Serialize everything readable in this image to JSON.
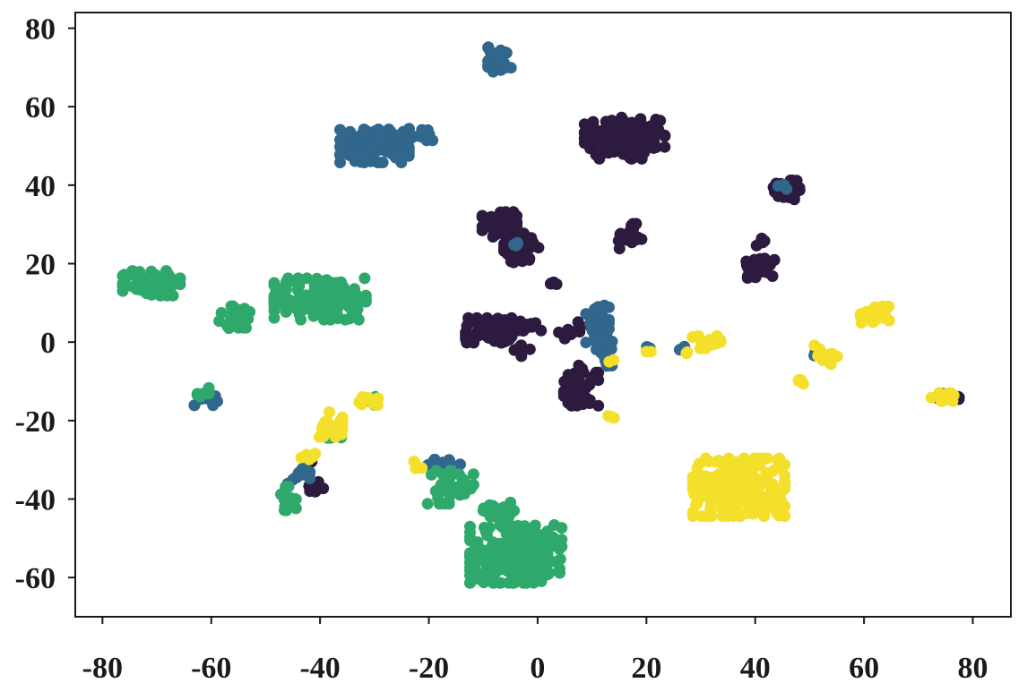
{
  "chart_data": {
    "type": "scatter",
    "title": "",
    "xlabel": "",
    "ylabel": "",
    "xlim": [
      -85,
      87
    ],
    "ylim": [
      -70,
      84
    ],
    "xticks": [
      -80,
      -60,
      -40,
      -20,
      0,
      20,
      40,
      60,
      80
    ],
    "yticks": [
      -60,
      -40,
      -20,
      0,
      20,
      40,
      60,
      80
    ],
    "xtick_labels": [
      "-80",
      "-60",
      "-40",
      "-20",
      "0",
      "20",
      "40",
      "60",
      "80"
    ],
    "ytick_labels": [
      "-60",
      "-40",
      "-20",
      "0",
      "20",
      "40",
      "60",
      "80"
    ],
    "grid": false,
    "legend": "none",
    "series": [
      {
        "color": "#2d1b3f",
        "clusters": [
          {
            "cx": 16,
            "cy": 52,
            "rx": 7,
            "ry": 5,
            "n": 140
          },
          {
            "cx": 46,
            "cy": 39,
            "rx": 2.5,
            "ry": 2.5,
            "n": 30
          },
          {
            "cx": 41,
            "cy": 19,
            "rx": 2.5,
            "ry": 2.5,
            "n": 35
          },
          {
            "cx": 41,
            "cy": 25,
            "rx": 0.8,
            "ry": 1.5,
            "n": 5
          },
          {
            "cx": 17,
            "cy": 27,
            "rx": 2,
            "ry": 3,
            "n": 20
          },
          {
            "cx": -7,
            "cy": 30,
            "rx": 3,
            "ry": 3,
            "n": 45
          },
          {
            "cx": -3,
            "cy": 24,
            "rx": 3,
            "ry": 3.5,
            "n": 45
          },
          {
            "cx": 3,
            "cy": 15,
            "rx": 1,
            "ry": 1,
            "n": 5
          },
          {
            "cx": -9,
            "cy": 3,
            "rx": 4,
            "ry": 3,
            "n": 75
          },
          {
            "cx": -2,
            "cy": 4,
            "rx": 2.5,
            "ry": 1.5,
            "n": 12
          },
          {
            "cx": 6,
            "cy": 3,
            "rx": 2,
            "ry": 2,
            "n": 10
          },
          {
            "cx": 8,
            "cy": -12,
            "rx": 3,
            "ry": 4,
            "n": 45
          },
          {
            "cx": 8,
            "cy": -7,
            "rx": 1,
            "ry": 1,
            "n": 5
          },
          {
            "cx": -41,
            "cy": -37,
            "rx": 1.5,
            "ry": 2,
            "n": 14
          },
          {
            "cx": -42,
            "cy": -31,
            "rx": 1,
            "ry": 1.5,
            "n": 8
          },
          {
            "cx": 76,
            "cy": -14,
            "rx": 2.5,
            "ry": 1,
            "n": 10
          },
          {
            "cx": -3,
            "cy": -2,
            "rx": 1.5,
            "ry": 1.5,
            "n": 8
          }
        ]
      },
      {
        "color": "#31668d",
        "clusters": [
          {
            "cx": -7,
            "cy": 72,
            "rx": 2,
            "ry": 3,
            "n": 30
          },
          {
            "cx": -30,
            "cy": 50,
            "rx": 6,
            "ry": 4,
            "n": 110
          },
          {
            "cx": -21,
            "cy": 53,
            "rx": 2.5,
            "ry": 1.5,
            "n": 15
          },
          {
            "cx": 11,
            "cy": 3,
            "rx": 2,
            "ry": 6,
            "n": 55
          },
          {
            "cx": 13,
            "cy": -3,
            "rx": 1.5,
            "ry": 3,
            "n": 15
          },
          {
            "cx": -4,
            "cy": 25,
            "rx": 1,
            "ry": 1,
            "n": 4
          },
          {
            "cx": -61,
            "cy": -14,
            "rx": 2,
            "ry": 2,
            "n": 20
          },
          {
            "cx": -17,
            "cy": -31,
            "rx": 3,
            "ry": 1,
            "n": 18
          },
          {
            "cx": -44,
            "cy": -34,
            "rx": 2,
            "ry": 2,
            "n": 12
          },
          {
            "cx": 20,
            "cy": -2,
            "rx": 1,
            "ry": 1,
            "n": 5
          },
          {
            "cx": 27,
            "cy": -2,
            "rx": 1,
            "ry": 1,
            "n": 4
          },
          {
            "cx": 52,
            "cy": -4,
            "rx": 2,
            "ry": 1.5,
            "n": 5
          },
          {
            "cx": 45,
            "cy": 40,
            "rx": 1,
            "ry": 1,
            "n": 4
          }
        ]
      },
      {
        "color": "#2fa86c",
        "clusters": [
          {
            "cx": -71,
            "cy": 15,
            "rx": 5,
            "ry": 3,
            "n": 80
          },
          {
            "cx": -40,
            "cy": 11,
            "rx": 8,
            "ry": 5,
            "n": 150
          },
          {
            "cx": -55,
            "cy": 6,
            "rx": 3.5,
            "ry": 3,
            "n": 25
          },
          {
            "cx": -4,
            "cy": -54,
            "rx": 8,
            "ry": 7,
            "n": 210
          },
          {
            "cx": -7,
            "cy": -43,
            "rx": 3,
            "ry": 2,
            "n": 25
          },
          {
            "cx": -16,
            "cy": -37,
            "rx": 4,
            "ry": 4,
            "n": 35
          },
          {
            "cx": -46,
            "cy": -40,
            "rx": 1.5,
            "ry": 3,
            "n": 18
          },
          {
            "cx": -37,
            "cy": -23,
            "rx": 1.5,
            "ry": 2,
            "n": 8
          },
          {
            "cx": -62,
            "cy": -13,
            "rx": 1.5,
            "ry": 1.5,
            "n": 6
          },
          {
            "cx": -30,
            "cy": -15,
            "rx": 1.5,
            "ry": 1,
            "n": 5
          }
        ]
      },
      {
        "color": "#f4df2a",
        "clusters": [
          {
            "cx": 37,
            "cy": -37,
            "rx": 8,
            "ry": 7,
            "n": 230
          },
          {
            "cx": 62,
            "cy": 7,
            "rx": 2.5,
            "ry": 2,
            "n": 30
          },
          {
            "cx": 53,
            "cy": -3,
            "rx": 2.5,
            "ry": 2.5,
            "n": 12
          },
          {
            "cx": 49,
            "cy": -10,
            "rx": 1,
            "ry": 1,
            "n": 4
          },
          {
            "cx": 31,
            "cy": 0,
            "rx": 2.5,
            "ry": 1.5,
            "n": 14
          },
          {
            "cx": -31,
            "cy": -15,
            "rx": 2,
            "ry": 1,
            "n": 14
          },
          {
            "cx": -38,
            "cy": -21,
            "rx": 2,
            "ry": 3,
            "n": 18
          },
          {
            "cx": -42,
            "cy": -29,
            "rx": 1.5,
            "ry": 1,
            "n": 8
          },
          {
            "cx": 75,
            "cy": -14,
            "rx": 2.5,
            "ry": 1,
            "n": 14
          },
          {
            "cx": 13,
            "cy": -19,
            "rx": 1,
            "ry": 1,
            "n": 4
          },
          {
            "cx": -22,
            "cy": -32,
            "rx": 1,
            "ry": 1.5,
            "n": 5
          },
          {
            "cx": 14,
            "cy": -5,
            "rx": 0.8,
            "ry": 0.8,
            "n": 2
          },
          {
            "cx": 20,
            "cy": -2,
            "rx": 0.8,
            "ry": 0.8,
            "n": 2
          },
          {
            "cx": 27,
            "cy": -2,
            "rx": 0.8,
            "ry": 0.8,
            "n": 2
          }
        ]
      }
    ]
  }
}
